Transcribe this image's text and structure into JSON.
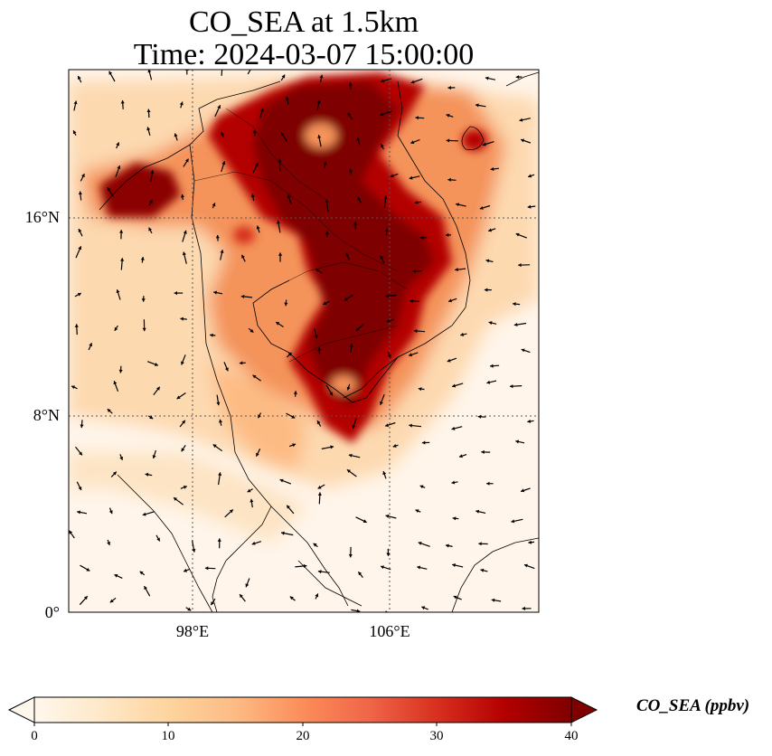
{
  "title": {
    "line1": "CO_SEA at 1.5km",
    "line2": "Time: 2024-03-07 15:00:00"
  },
  "map": {
    "lat_ticks": [
      "16°N",
      "8°N",
      "0°"
    ],
    "lon_ticks": [
      "98°E",
      "106°E"
    ],
    "gridlines": true,
    "wind_vectors": true,
    "colormap": "OrRd",
    "colors": {
      "low": "#fff7ec",
      "mid": "#fc8d59",
      "high": "#7f0000",
      "coast": "#000000",
      "grid": "#555555"
    }
  },
  "colorbar": {
    "label": "CO_SEA (ppbv)",
    "ticks": [
      "0",
      "10",
      "20",
      "30",
      "40"
    ],
    "range": [
      0,
      40
    ],
    "extend": "both"
  }
}
